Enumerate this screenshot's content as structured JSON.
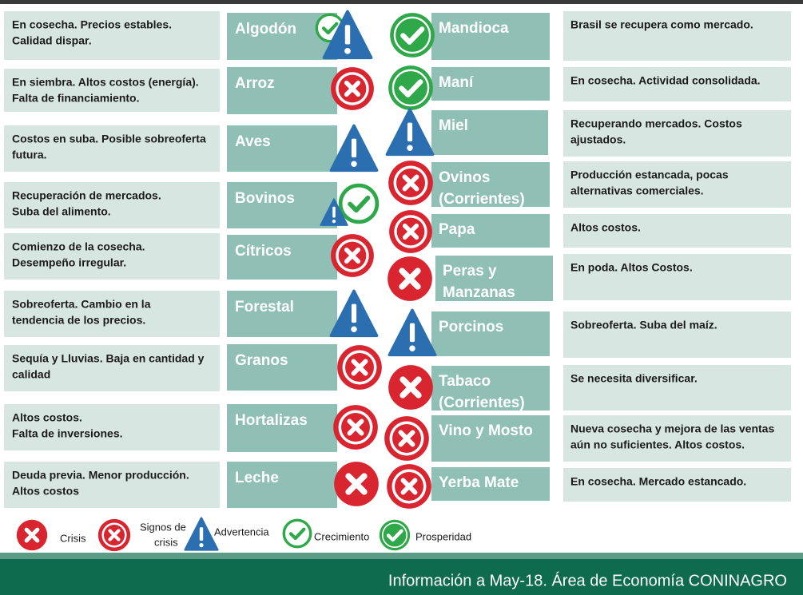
{
  "left": [
    {
      "description": [
        "En cosecha. Precios estables.",
        "Calidad dispar."
      ],
      "product": [
        "Algodón"
      ]
    },
    {
      "description": [
        "En siembra. Altos costos (energía).",
        "Falta de financiamiento."
      ],
      "product": [
        "Arroz"
      ]
    },
    {
      "description": [
        "Costos en suba. Posible sobreoferta",
        "futura."
      ],
      "product": [
        "Aves"
      ]
    },
    {
      "description": [
        "Recuperación de mercados.",
        "Suba del alimento."
      ],
      "product": [
        "Bovinos"
      ]
    },
    {
      "description": [
        "Comienzo de la cosecha.",
        "Desempeño irregular."
      ],
      "product": [
        "Cítricos"
      ]
    },
    {
      "description": [
        "Sobreoferta. Cambio en la",
        "tendencia de los precios."
      ],
      "product": [
        "Forestal"
      ]
    },
    {
      "description": [
        "Sequía y Lluvias. Baja en cantidad y",
        "calidad"
      ],
      "product": [
        "Granos"
      ]
    },
    {
      "description": [
        "Altos costos.",
        "Falta de inversiones."
      ],
      "product": [
        "Hortalizas"
      ]
    },
    {
      "description": [
        "Deuda previa. Menor producción.",
        "Altos costos"
      ],
      "product": [
        "Leche"
      ]
    }
  ],
  "right": [
    {
      "product": [
        "Mandioca"
      ],
      "description": [
        "Brasil se recupera como mercado."
      ]
    },
    {
      "product": [
        "Maní"
      ],
      "description": [
        "En cosecha. Actividad consolidada."
      ]
    },
    {
      "product": [
        "Miel"
      ],
      "description": [
        "Recuperando mercados. Costos",
        "ajustados."
      ]
    },
    {
      "product": [
        "Ovinos",
        "(Corrientes)"
      ],
      "description": [
        "Producción estancada, pocas",
        "alternativas comerciales."
      ]
    },
    {
      "product": [
        "Papa"
      ],
      "description": [
        "Altos costos."
      ]
    },
    {
      "product": [
        "Peras y",
        "Manzanas"
      ],
      "description": [
        "En poda. Altos Costos."
      ]
    },
    {
      "product": [
        "Porcinos"
      ],
      "description": [
        "Sobreoferta. Suba del maíz."
      ]
    },
    {
      "product": [
        "Tabaco",
        "(Corrientes)"
      ],
      "description": [
        "Se necesita diversificar."
      ]
    },
    {
      "product": [
        "Vino y Mosto"
      ],
      "description": [
        "Nueva cosecha y mejora de las ventas",
        "aún no suficientes. Altos costos."
      ]
    },
    {
      "product": [
        "Yerba Mate"
      ],
      "description": [
        "En cosecha.  Mercado estancado."
      ]
    }
  ],
  "legend": [
    [
      "Crisis"
    ],
    [
      "Signos de",
      "crisis"
    ],
    [
      "Advertencia"
    ],
    [
      "Crecimiento"
    ],
    [
      "Prosperidad"
    ]
  ],
  "footer": "Información a May-18. Área de Economía CONINAGRO"
}
